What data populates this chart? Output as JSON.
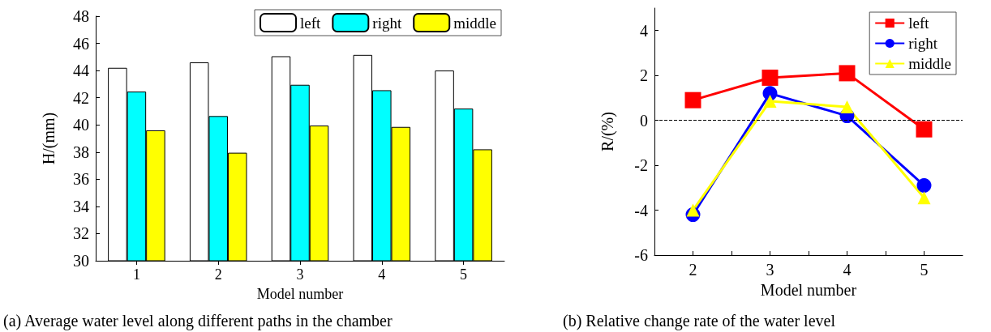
{
  "chart_data": [
    {
      "type": "bar",
      "categories": [
        "1",
        "2",
        "3",
        "4",
        "5"
      ],
      "xlabel": "Model number",
      "ylabel": "H/(mm)",
      "series": [
        {
          "name": "left",
          "color": "#ffffff",
          "values": [
            44.2,
            44.6,
            45.05,
            45.15,
            44.0
          ]
        },
        {
          "name": "right",
          "color": "#00ffff",
          "values": [
            42.45,
            40.65,
            42.95,
            42.55,
            41.2
          ]
        },
        {
          "name": "middle",
          "color": "#ffff00",
          "values": [
            39.6,
            37.95,
            39.95,
            39.85,
            38.2
          ]
        }
      ],
      "ylim": [
        30,
        48
      ],
      "yticks": [
        30,
        32,
        34,
        36,
        38,
        40,
        42,
        44,
        46,
        48
      ],
      "grid": false,
      "legend": "top right",
      "annotations": [
        "(a) Average water level along different paths in the chamber"
      ]
    },
    {
      "type": "line",
      "x": [
        2,
        3,
        4,
        5
      ],
      "xlabel": "Model number",
      "ylabel": "R/(%)",
      "series": [
        {
          "name": "left",
          "color": "#ff0000",
          "marker": "square",
          "values": [
            0.9,
            1.9,
            2.1,
            -0.4
          ]
        },
        {
          "name": "right",
          "color": "#0000ff",
          "marker": "circle",
          "values": [
            -4.2,
            1.2,
            0.2,
            -2.9
          ]
        },
        {
          "name": "middle",
          "color": "#ffff00",
          "marker": "triangle",
          "values": [
            -4.0,
            0.85,
            0.6,
            -3.45
          ]
        }
      ],
      "xlim": [
        1.5,
        5.5
      ],
      "xticks": [
        2,
        {
          "value": 2.5,
          "label": null
        },
        3,
        {
          "value": 3.5,
          "label": null
        },
        4,
        {
          "value": 4.5,
          "label": null
        },
        5
      ],
      "ylim": [
        -6,
        5
      ],
      "yticks": [
        -6,
        -4,
        -2,
        0,
        2,
        4
      ],
      "ref_lines": [
        {
          "axis": "y",
          "value": 0,
          "color": "#000000",
          "line_style": "dashed"
        }
      ],
      "grid": false,
      "legend": "top right",
      "line_style": "solid",
      "annotations": [
        "(b) Relative change rate of the water level"
      ]
    }
  ]
}
